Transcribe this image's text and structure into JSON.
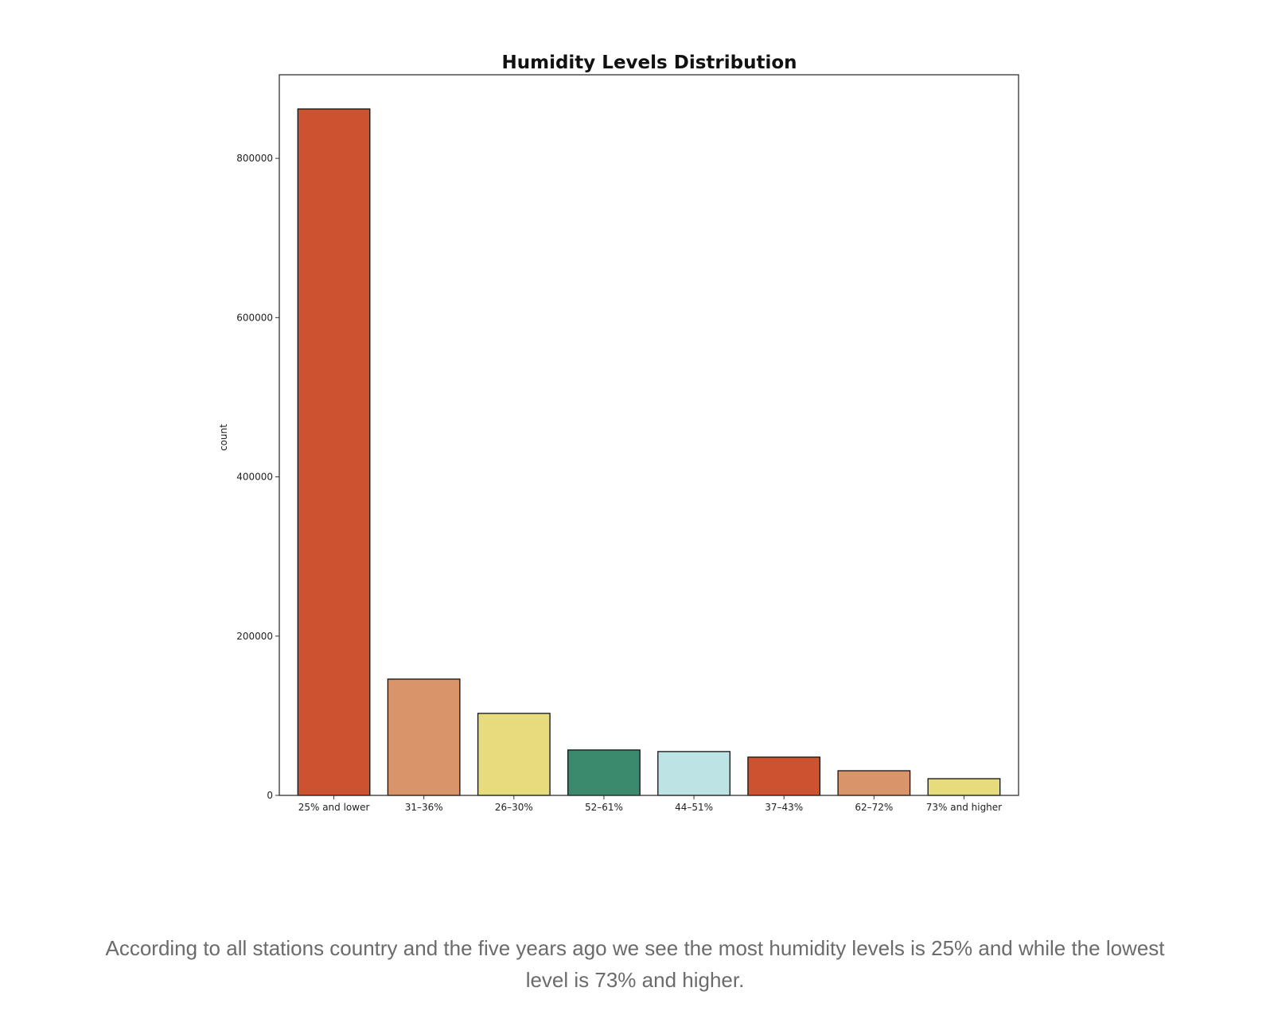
{
  "chart_data": {
    "type": "bar",
    "title": "Humidity Levels Distribution",
    "xlabel": "",
    "ylabel": "count",
    "ylim": [
      0,
      905000
    ],
    "yticks": [
      0,
      200000,
      400000,
      600000,
      800000
    ],
    "ytick_labels": [
      "0",
      "200000",
      "400000",
      "600000",
      "800000"
    ],
    "categories": [
      "25% and lower",
      "31–36%",
      "26–30%",
      "52–61%",
      "44–51%",
      "37–43%",
      "62–72%",
      "73% and higher"
    ],
    "values": [
      862000,
      146000,
      103000,
      57000,
      55000,
      48000,
      31000,
      21000
    ],
    "colors": [
      "#CD5330",
      "#D9946A",
      "#E6DC7E",
      "#3C8A6E",
      "#BDE3E5",
      "#CD5330",
      "#D9946A",
      "#E6DC7E"
    ],
    "edge_color": "#111111",
    "grid": false,
    "legend": "none"
  },
  "caption": {
    "text": "According to all stations country and the five years ago we see the most humidity levels is 25% and while the lowest level is 73% and higher."
  }
}
